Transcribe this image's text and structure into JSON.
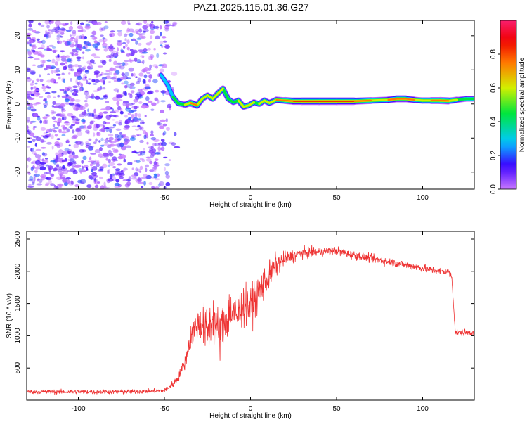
{
  "title": "PAZ1.2025.115.01.36.G27",
  "chart_data": [
    {
      "type": "heatmap",
      "title": "PAZ1.2025.115.01.36.G27",
      "xlabel": "Height of straight line (km)",
      "ylabel": "Frequency (Hz)",
      "xlim": [
        -130,
        130
      ],
      "ylim": [
        -25,
        24.5
      ],
      "xticks": [
        -100,
        -50,
        0,
        50,
        100
      ],
      "yticks": [
        -20,
        -10,
        0,
        10,
        20
      ],
      "colorbar": {
        "label": "Normalized spectral amplitude",
        "range": [
          0,
          1
        ],
        "ticks": [
          "0.0",
          "0.2",
          "0.4",
          "0.6",
          "0.8"
        ]
      },
      "noise_region_x": [
        -130,
        -48
      ],
      "ridge": {
        "x": [
          -52,
          -48,
          -45,
          -42,
          -38,
          -35,
          -31,
          -28,
          -25,
          -22,
          -19,
          -16,
          -13,
          -10,
          -7,
          -4,
          -1,
          2,
          5,
          8,
          11,
          15,
          20,
          25,
          30,
          40,
          50,
          60,
          70,
          80,
          85,
          90,
          95,
          100,
          105,
          110,
          115,
          120,
          125,
          130
        ],
        "freq": [
          8.5,
          5.5,
          2.0,
          0.2,
          -0.2,
          0.3,
          -0.4,
          1.5,
          2.5,
          1.5,
          3.0,
          4.5,
          1.5,
          0.5,
          1.0,
          -0.8,
          -0.4,
          0.5,
          0.0,
          1.0,
          0.3,
          1.2,
          1.0,
          0.8,
          0.8,
          0.8,
          0.8,
          0.8,
          1.0,
          1.2,
          1.5,
          1.5,
          1.2,
          1.0,
          1.0,
          1.0,
          0.9,
          1.2,
          1.5,
          1.5
        ],
        "amp": [
          0.3,
          0.35,
          0.45,
          0.6,
          0.55,
          0.9,
          0.75,
          0.55,
          0.65,
          0.55,
          0.7,
          0.6,
          0.5,
          0.45,
          0.55,
          0.7,
          0.65,
          0.55,
          0.5,
          0.7,
          0.6,
          0.65,
          0.85,
          0.9,
          1.0,
          1.0,
          1.0,
          0.95,
          0.7,
          0.75,
          0.9,
          0.85,
          0.7,
          0.6,
          0.75,
          0.9,
          0.85,
          0.55,
          0.5,
          0.5
        ]
      }
    },
    {
      "type": "line",
      "xlabel": "Height of straight line (km)",
      "ylabel": "SNR (10 * v/v)",
      "xlim": [
        -130,
        130
      ],
      "ylim": [
        0,
        2620
      ],
      "xticks": [
        -100,
        -50,
        0,
        50,
        100
      ],
      "yticks": [
        500,
        1000,
        1500,
        2000,
        2500
      ],
      "color": "#ee3333",
      "envelope": {
        "x": [
          -130,
          -100,
          -70,
          -50,
          -45,
          -42,
          -38,
          -35,
          -32,
          -28,
          -25,
          -22,
          -18,
          -15,
          -12,
          -8,
          -5,
          0,
          5,
          10,
          15,
          20,
          30,
          40,
          50,
          60,
          70,
          80,
          90,
          100,
          110,
          115,
          117,
          119,
          125,
          130
        ],
        "y": [
          130,
          130,
          130,
          150,
          250,
          350,
          600,
          950,
          1150,
          1200,
          1050,
          1300,
          1000,
          1200,
          1400,
          1300,
          1450,
          1450,
          1700,
          1900,
          2100,
          2200,
          2280,
          2300,
          2320,
          2250,
          2200,
          2150,
          2100,
          2050,
          2000,
          2000,
          1900,
          1050,
          1050,
          1050
        ]
      },
      "noise_amplitude": {
        "x": [
          -130,
          -50,
          -40,
          -35,
          -25,
          -15,
          -5,
          5,
          15,
          20,
          40,
          100,
          117,
          119,
          130
        ],
        "y": [
          35,
          35,
          80,
          180,
          380,
          380,
          320,
          280,
          180,
          110,
          70,
          60,
          60,
          50,
          50
        ]
      }
    }
  ]
}
